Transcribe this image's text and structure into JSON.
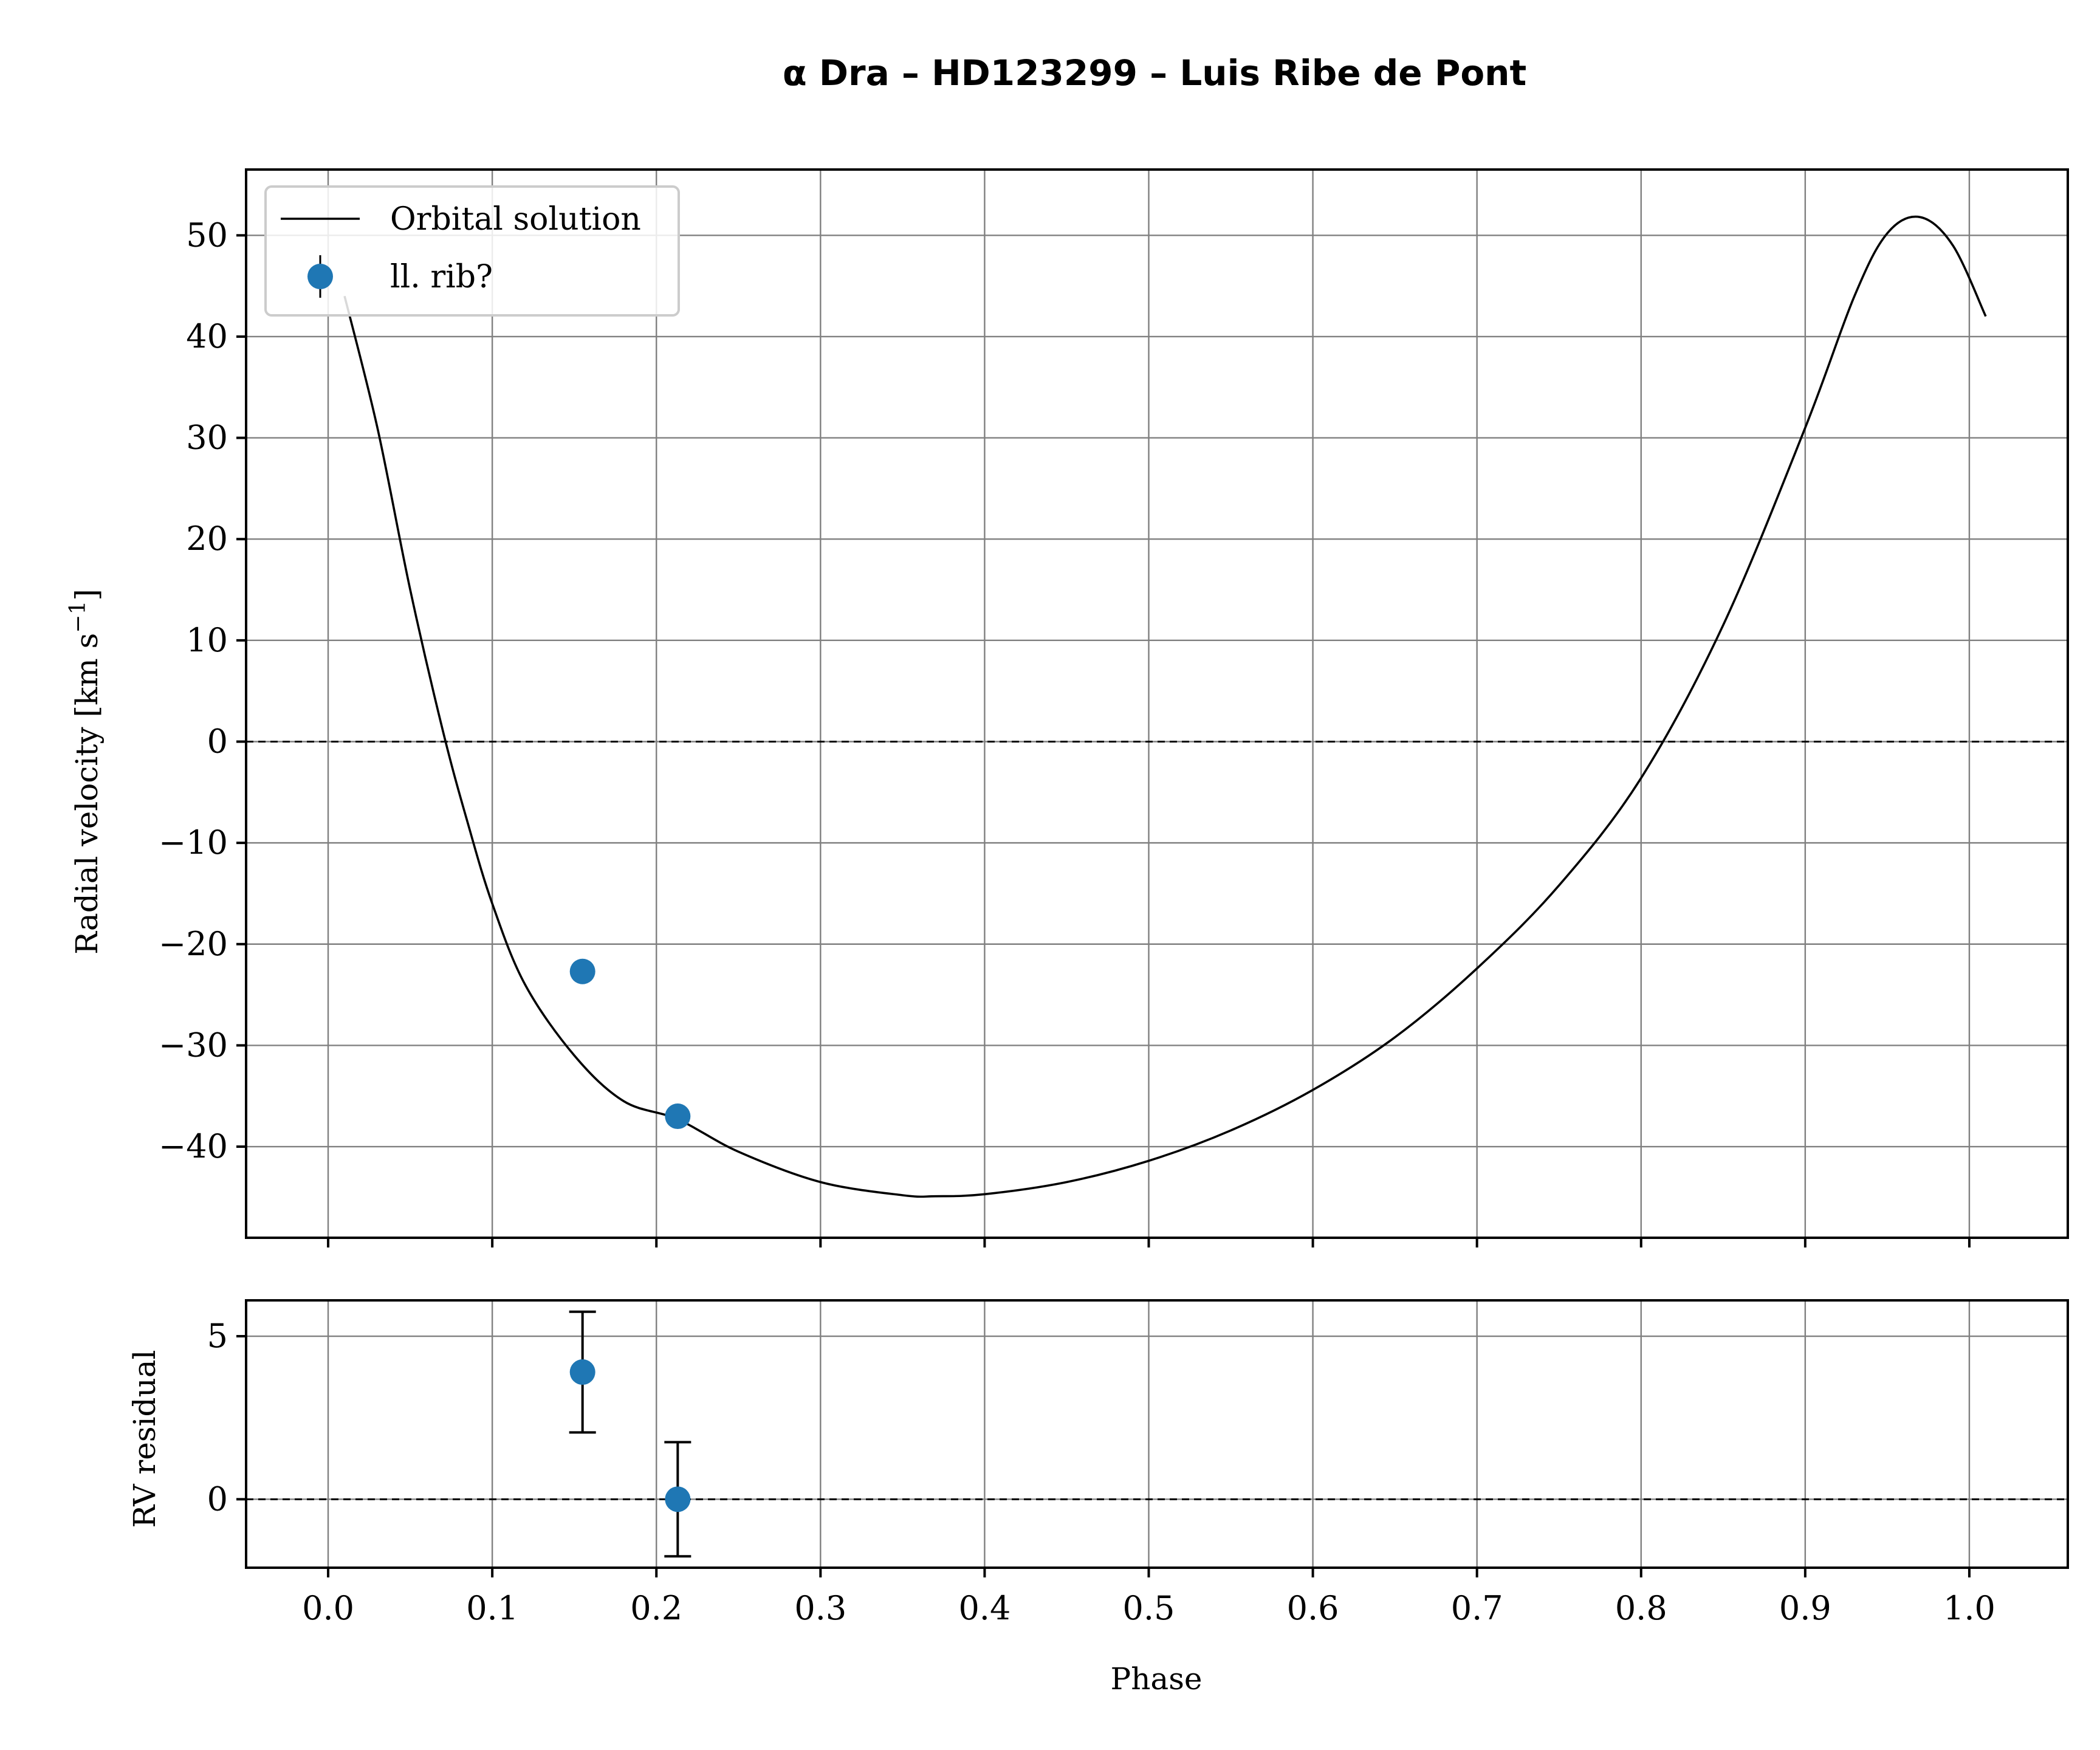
{
  "title": "α Dra – HD123299 – Luis Ribe de Pont",
  "colors": {
    "data": "#1f77b4",
    "model": "#000000",
    "grid": "#808080"
  },
  "legend": {
    "placement": "upper-left",
    "entries": [
      {
        "label": "Orbital solution",
        "kind": "line"
      },
      {
        "label": "ll. rib?",
        "kind": "errorbar-marker"
      }
    ]
  },
  "chart_data": [
    {
      "type": "line",
      "panel": "main",
      "ylabel": "Radial velocity [km s",
      "ylabel_sup": "−1",
      "ylabel_end": "]",
      "xlim": [
        -0.05,
        1.06
      ],
      "ylim": [
        -49,
        56.5
      ],
      "grid": true,
      "zero_line": "dashed",
      "yticks": [
        -40,
        -30,
        -20,
        -10,
        0,
        10,
        20,
        30,
        40,
        50
      ],
      "ytick_labels": [
        "−40",
        "−30",
        "−20",
        "−10",
        "0",
        "10",
        "20",
        "30",
        "40",
        "50"
      ],
      "xticks": [
        0.0,
        0.1,
        0.2,
        0.3,
        0.4,
        0.5,
        0.6,
        0.7,
        0.8,
        0.9,
        1.0
      ],
      "series": [
        {
          "name": "Orbital solution",
          "style": "line",
          "points": [
            [
              0.01,
              44
            ],
            [
              0.03,
              31
            ],
            [
              0.05,
              15
            ],
            [
              0.07,
              1
            ],
            [
              0.085,
              -8
            ],
            [
              0.1,
              -16
            ],
            [
              0.12,
              -24
            ],
            [
              0.15,
              -31
            ],
            [
              0.18,
              -35.5
            ],
            [
              0.213,
              -37.3
            ],
            [
              0.25,
              -40.5
            ],
            [
              0.3,
              -43.5
            ],
            [
              0.35,
              -44.8
            ],
            [
              0.37,
              -44.9
            ],
            [
              0.4,
              -44.7
            ],
            [
              0.45,
              -43.5
            ],
            [
              0.5,
              -41.4
            ],
            [
              0.55,
              -38.4
            ],
            [
              0.6,
              -34.4
            ],
            [
              0.65,
              -29.2
            ],
            [
              0.7,
              -22.4
            ],
            [
              0.75,
              -14.2
            ],
            [
              0.8,
              -3.6
            ],
            [
              0.85,
              11.5
            ],
            [
              0.9,
              31
            ],
            [
              0.93,
              44
            ],
            [
              0.95,
              50.2
            ],
            [
              0.97,
              51.8
            ],
            [
              0.99,
              49
            ],
            [
              1.01,
              42
            ]
          ]
        },
        {
          "name": "ll. rib?",
          "style": "errorbar",
          "points": [
            {
              "x": 0.155,
              "y": -22.7
            },
            {
              "x": 0.213,
              "y": -37.0
            }
          ]
        }
      ]
    },
    {
      "type": "scatter",
      "panel": "residual",
      "xlabel": "Phase",
      "ylabel": "RV residual",
      "xlim": [
        -0.05,
        1.06
      ],
      "ylim": [
        -2.1,
        6.1
      ],
      "grid": true,
      "zero_line": "dashed",
      "yticks": [
        0,
        5
      ],
      "ytick_labels": [
        "0",
        "5"
      ],
      "xticks": [
        0.0,
        0.1,
        0.2,
        0.3,
        0.4,
        0.5,
        0.6,
        0.7,
        0.8,
        0.9,
        1.0
      ],
      "xtick_labels": [
        "0.0",
        "0.1",
        "0.2",
        "0.3",
        "0.4",
        "0.5",
        "0.6",
        "0.7",
        "0.8",
        "0.9",
        "1.0"
      ],
      "series": [
        {
          "style": "errorbar",
          "points": [
            {
              "x": 0.155,
              "y": 3.9,
              "yerr": 1.85
            },
            {
              "x": 0.213,
              "y": 0.0,
              "yerr": 1.75
            }
          ]
        }
      ]
    }
  ]
}
